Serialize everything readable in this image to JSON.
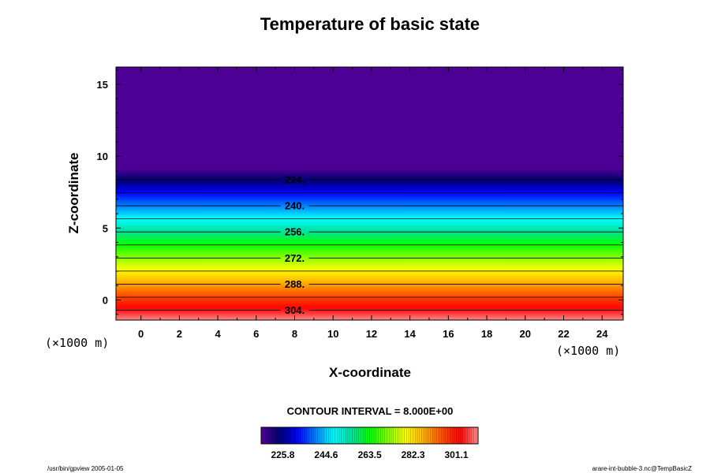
{
  "chart_data": {
    "type": "heatmap",
    "title": "Temperature of basic state",
    "xlabel": "X-coordinate",
    "ylabel": "Z-coordinate",
    "x_unit": "(×1000 m)",
    "y_unit": "(×1000 m)",
    "xlim": [
      -1.3,
      25.1
    ],
    "ylim": [
      -1.4,
      16.2
    ],
    "x_ticks": [
      "0",
      "2",
      "4",
      "6",
      "8",
      "10",
      "12",
      "14",
      "16",
      "18",
      "20",
      "22",
      "24"
    ],
    "x_tick_values": [
      0,
      2,
      4,
      6,
      8,
      10,
      12,
      14,
      16,
      18,
      20,
      22,
      24
    ],
    "y_ticks": [
      "0",
      "5",
      "10",
      "15"
    ],
    "y_tick_values": [
      0,
      5,
      10,
      15
    ],
    "temperature_profile": [
      {
        "z": -1.4,
        "value": 310
      },
      {
        "z": 9.1,
        "value": 217.5
      },
      {
        "z": 16.2,
        "value": 217.5
      }
    ],
    "contour_interval_text": "CONTOUR INTERVAL = 8.000E+00",
    "contours": [
      {
        "label": "224.",
        "value": 224
      },
      {
        "label": "240.",
        "value": 240
      },
      {
        "label": "256.",
        "value": 256
      },
      {
        "label": "272.",
        "value": 272
      },
      {
        "label": "288.",
        "value": 288
      },
      {
        "label": "304.",
        "value": 304
      }
    ],
    "unlabeled_contours": [
      232,
      248,
      264,
      280,
      296
    ],
    "contour_label_x": 8,
    "colorbar": {
      "min": 216.4,
      "max": 310.5,
      "tick_labels": [
        "225.8",
        "244.6",
        "263.5",
        "282.3",
        "301.1"
      ],
      "tick_values": [
        225.8,
        244.6,
        263.5,
        282.3,
        301.1
      ]
    },
    "colormap": [
      "#5a009a",
      "#000070",
      "#0000ff",
      "#0080ff",
      "#00ffff",
      "#00e0a0",
      "#00ff00",
      "#80ff00",
      "#ffff00",
      "#ffb000",
      "#ff5000",
      "#ff0000",
      "#ff9090"
    ],
    "grid": false,
    "legend": "colorbar bottom-center"
  },
  "footer": {
    "left": "/usr/bin/gpview 2005-01-05",
    "right": "arare-int-bubble-3.nc@TempBasicZ"
  }
}
